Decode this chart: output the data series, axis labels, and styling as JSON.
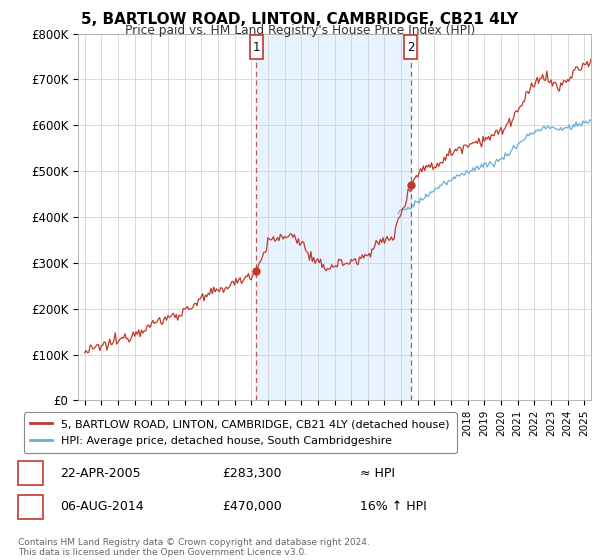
{
  "title": "5, BARTLOW ROAD, LINTON, CAMBRIDGE, CB21 4LY",
  "subtitle": "Price paid vs. HM Land Registry's House Price Index (HPI)",
  "legend_line1": "5, BARTLOW ROAD, LINTON, CAMBRIDGE, CB21 4LY (detached house)",
  "legend_line2": "HPI: Average price, detached house, South Cambridgeshire",
  "annotation1_date": "22-APR-2005",
  "annotation1_price_str": "£283,300",
  "annotation1_price": 283300,
  "annotation1_note": "≈ HPI",
  "annotation2_date": "06-AUG-2014",
  "annotation2_price_str": "£470,000",
  "annotation2_price": 470000,
  "annotation2_note": "16% ↑ HPI",
  "footer": "Contains HM Land Registry data © Crown copyright and database right 2024.\nThis data is licensed under the Open Government Licence v3.0.",
  "hpi_color": "#6baed6",
  "price_color": "#c0392b",
  "shade_color": "#ddeeff",
  "annotation_box_color": "#c0392b",
  "background_color": "#ffffff",
  "grid_color": "#cccccc",
  "ylim": [
    0,
    800000
  ],
  "yticks": [
    0,
    100000,
    200000,
    300000,
    400000,
    500000,
    600000,
    700000,
    800000
  ],
  "ytick_labels": [
    "£0",
    "£100K",
    "£200K",
    "£300K",
    "£400K",
    "£500K",
    "£600K",
    "£700K",
    "£800K"
  ],
  "sale1_year": 2005.3,
  "sale2_year": 2014.58,
  "xlim_left": 1994.6,
  "xlim_right": 2025.4
}
